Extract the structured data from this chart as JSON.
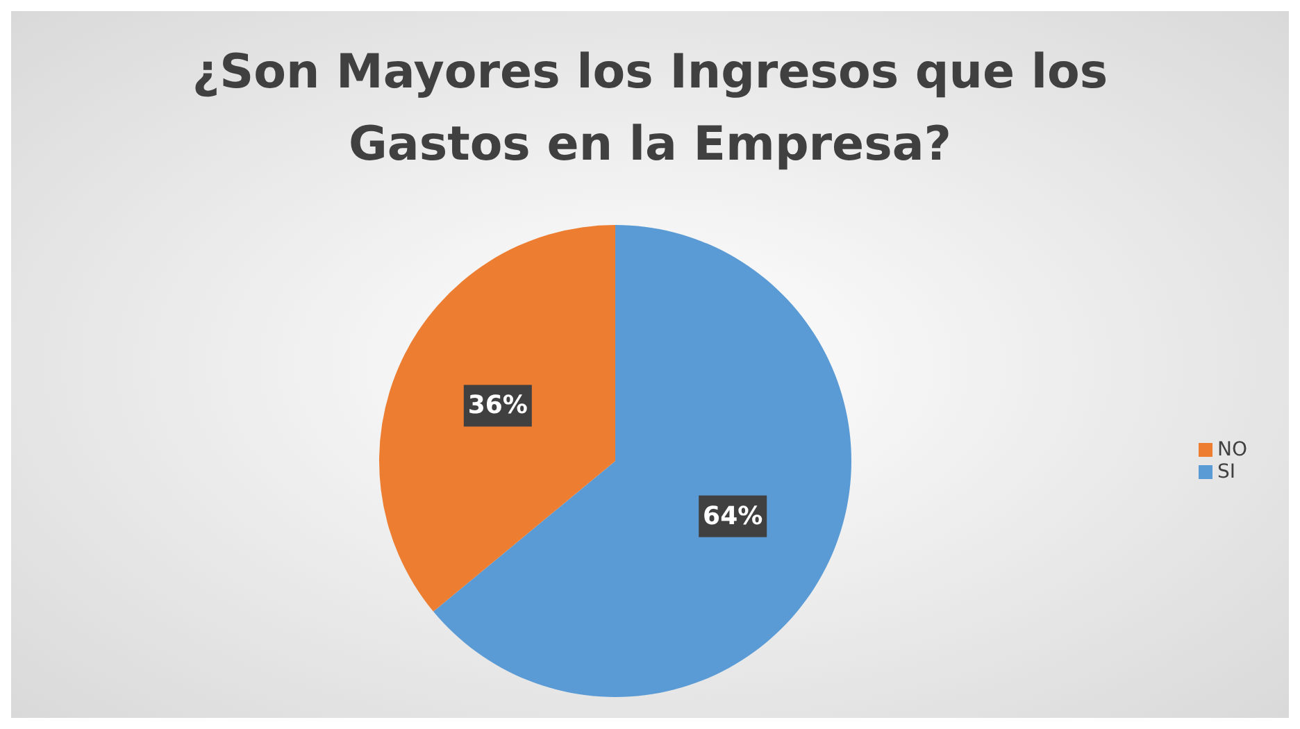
{
  "chart_data": {
    "type": "pie",
    "title": "¿Son Mayores los Ingresos que los Gastos en la Empresa?",
    "categories": [
      "SI",
      "NO"
    ],
    "values": [
      64,
      36
    ],
    "value_labels": [
      "64%",
      "36%"
    ],
    "colors": [
      "#5b9bd5",
      "#ed7d31"
    ],
    "legend": "right"
  }
}
